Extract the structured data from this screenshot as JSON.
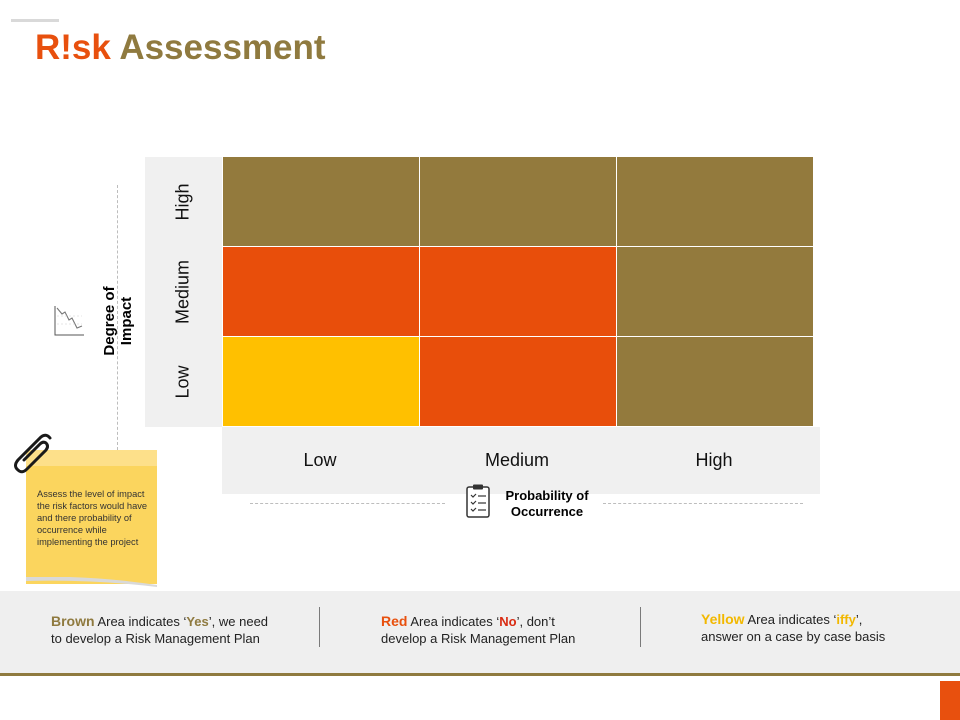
{
  "title": {
    "part1": "R!sk",
    "part2": "Assessment"
  },
  "y_axis": {
    "title_line1": "Degree of",
    "title_line2": "Impact",
    "labels": [
      "High",
      "Medium",
      "Low"
    ]
  },
  "x_axis": {
    "title_line1": "Probability of",
    "title_line2": "Occurrence",
    "labels": [
      "Low",
      "Medium",
      "High"
    ]
  },
  "colors": {
    "brown": "#937a3d",
    "red": "#e84e0b",
    "yellow": "#ffc000",
    "accent": "#e8500e"
  },
  "matrix_rows": [
    [
      "brown",
      "brown",
      "brown"
    ],
    [
      "red",
      "red",
      "brown"
    ],
    [
      "yellow",
      "red",
      "brown"
    ]
  ],
  "note": {
    "text": "Assess the level of impact the risk factors would have and there probability of occurrence while implementing the project"
  },
  "legend": {
    "brown": {
      "key": "Brown",
      "pre": " Area indicates ‘",
      "val": "Yes",
      "post": "’, we need",
      "line2": "to develop a  Risk Management Plan"
    },
    "red": {
      "key": "Red",
      "pre": " Area indicates ‘",
      "val": "No",
      "post": "’, don’t",
      "line2": "develop a Risk Management Plan"
    },
    "yellow": {
      "key": "Yellow",
      "pre": " Area indicates ‘",
      "val": "iffy",
      "post": "’,",
      "line2": "answer on a case by case basis"
    }
  },
  "icons": [
    "line-chart-icon",
    "clipboard-checklist-icon",
    "paperclip-icon"
  ]
}
